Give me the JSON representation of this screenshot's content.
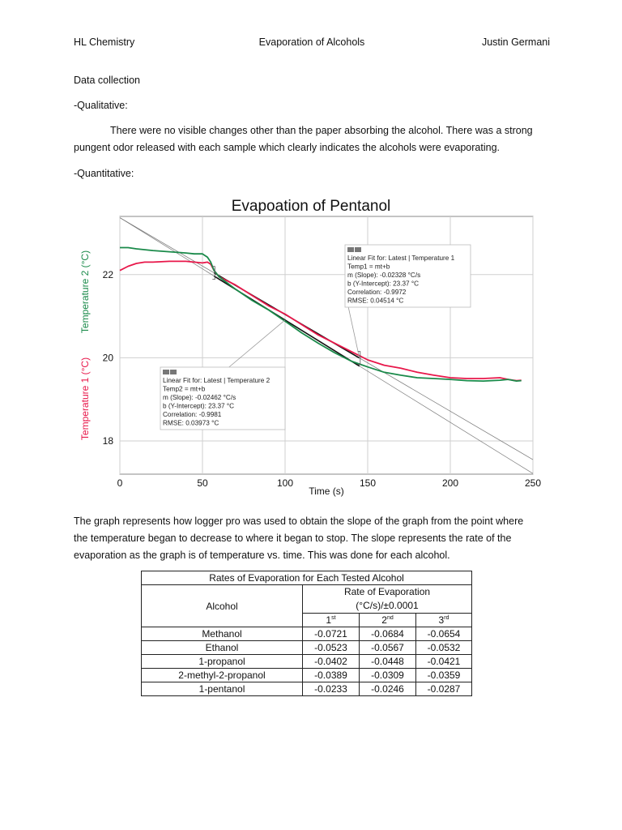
{
  "header": {
    "left": "HL Chemistry",
    "center": "Evaporation of Alcohols",
    "right": "Justin Germani"
  },
  "section_title": "Data collection",
  "qualitative": {
    "heading": "-Qualitative:",
    "line1": "There were no visible changes other than the paper absorbing the alcohol. There was a strong",
    "line2": "pungent odor released with each sample which clearly indicates the alcohols were evaporating."
  },
  "quantitative": {
    "heading": "-Quantitative:"
  },
  "chart_data": {
    "type": "line",
    "title": "Evapoation of Pentanol",
    "xlabel": "Time (s)",
    "ylabel_1": "Temperature 1 (°C)",
    "ylabel_2": "Temperature 2 (°C)",
    "xlim": [
      0,
      250
    ],
    "ylim": [
      17.2,
      23.4
    ],
    "xticks": [
      0,
      50,
      100,
      150,
      200,
      250
    ],
    "yticks": [
      18,
      20,
      22
    ],
    "grid": true,
    "series": [
      {
        "name": "Temperature 1",
        "color": "#e8174a",
        "x": [
          0,
          5,
          10,
          15,
          20,
          30,
          40,
          45,
          50,
          53,
          55,
          57,
          60,
          70,
          80,
          90,
          100,
          110,
          120,
          130,
          140,
          145,
          150,
          160,
          170,
          180,
          190,
          200,
          210,
          220,
          230,
          235,
          240,
          243
        ],
        "y": [
          22.1,
          22.2,
          22.27,
          22.3,
          22.3,
          22.32,
          22.32,
          22.3,
          22.28,
          22.3,
          22.25,
          22.1,
          21.95,
          21.75,
          21.5,
          21.25,
          21.05,
          20.8,
          20.55,
          20.35,
          20.15,
          20.05,
          19.95,
          19.82,
          19.75,
          19.65,
          19.58,
          19.52,
          19.5,
          19.5,
          19.52,
          19.48,
          19.45,
          19.46
        ]
      },
      {
        "name": "Temperature 2",
        "color": "#1a8a4a",
        "x": [
          0,
          5,
          10,
          20,
          30,
          40,
          45,
          50,
          53,
          55,
          57,
          60,
          70,
          80,
          90,
          100,
          110,
          120,
          130,
          140,
          145,
          150,
          160,
          170,
          180,
          190,
          200,
          210,
          220,
          230,
          235,
          240,
          243
        ],
        "y": [
          22.65,
          22.65,
          22.62,
          22.58,
          22.55,
          22.52,
          22.5,
          22.5,
          22.42,
          22.3,
          22.1,
          21.95,
          21.65,
          21.38,
          21.15,
          20.88,
          20.6,
          20.35,
          20.12,
          19.92,
          19.85,
          19.78,
          19.65,
          19.58,
          19.52,
          19.5,
          19.48,
          19.45,
          19.44,
          19.46,
          19.48,
          19.44,
          19.45
        ]
      }
    ],
    "fits": [
      {
        "series": "Temperature 1",
        "slope": -0.02328,
        "intercept": 23.37,
        "x_range": [
          57,
          145
        ],
        "label_lines": [
          "Linear Fit for: Latest | Temperature 1",
          "Temp1 = mt+b",
          "m (Slope): -0.02328 °C/s",
          "b (Y-Intercept): 23.37 °C",
          "Correlation: -0.9972",
          "RMSE: 0.04514 °C"
        ]
      },
      {
        "series": "Temperature 2",
        "slope": -0.02462,
        "intercept": 23.37,
        "x_range": [
          57,
          145
        ],
        "label_lines": [
          "Linear Fit for: Latest | Temperature 2",
          "Temp2 = mt+b",
          "m (Slope): -0.02462 °C/s",
          "b (Y-Intercept): 23.37 °C",
          "Correlation: -0.9981",
          "RMSE: 0.03973 °C"
        ]
      }
    ]
  },
  "explanation": {
    "line1": "The graph represents how logger pro was used to obtain the slope of the graph from the point where",
    "line2": "the temperature began to decrease to where it began to stop. The slope represents the rate of the",
    "line3": "evaporation as the graph is of temperature vs. time. This was done for each alcohol."
  },
  "table": {
    "title": "Rates of Evaporation for Each Tested Alcohol",
    "col_alcohol": "Alcohol",
    "col_rate_line1": "Rate of Evaporation",
    "col_rate_line2": "(°C/s)/±0.0001",
    "trials": [
      {
        "num": "1",
        "sup": "st"
      },
      {
        "num": "2",
        "sup": "nd"
      },
      {
        "num": "3",
        "sup": "rd"
      }
    ],
    "rows": [
      {
        "alcohol": "Methanol",
        "values": [
          "-0.0721",
          "-0.0684",
          "-0.0654"
        ]
      },
      {
        "alcohol": "Ethanol",
        "values": [
          "-0.0523",
          "-0.0567",
          "-0.0532"
        ]
      },
      {
        "alcohol": "1-propanol",
        "values": [
          "-0.0402",
          "-0.0448",
          "-0.0421"
        ]
      },
      {
        "alcohol": "2-methyl-2-propanol",
        "values": [
          "-0.0389",
          "-0.0309",
          "-0.0359"
        ]
      },
      {
        "alcohol": "1-pentanol",
        "values": [
          "-0.0233",
          "-0.0246",
          "-0.0287"
        ]
      }
    ]
  }
}
